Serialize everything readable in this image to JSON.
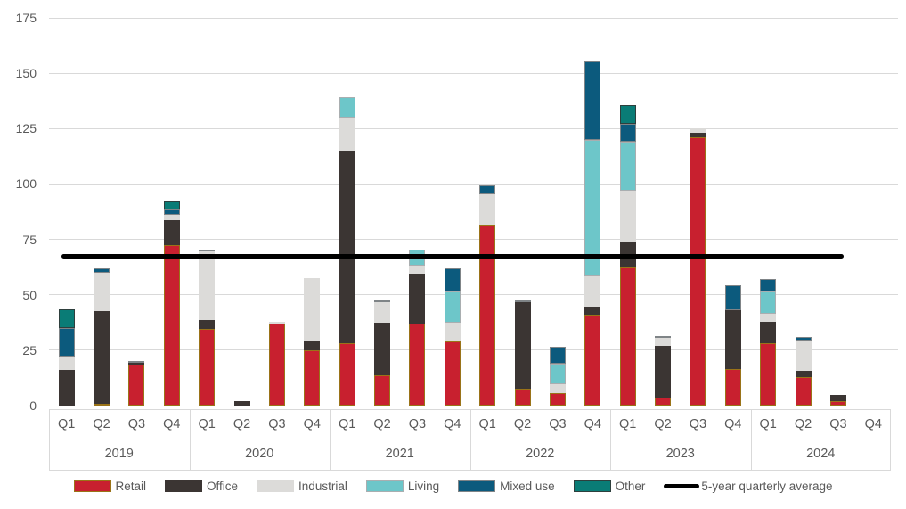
{
  "chart": {
    "background": "#ffffff",
    "text_color": "#595959",
    "grid_color": "#d9d9d9",
    "title": ""
  },
  "chart_data": {
    "type": "bar",
    "stacked": true,
    "grid": true,
    "legend_position": "bottom",
    "ylim": [
      0,
      175
    ],
    "yticks": [
      0,
      25,
      50,
      75,
      100,
      125,
      150,
      175
    ],
    "xlabel": "",
    "ylabel": "",
    "years": [
      "2019",
      "2020",
      "2021",
      "2022",
      "2023",
      "2024"
    ],
    "quarters": [
      "Q1",
      "Q2",
      "Q3",
      "Q4"
    ],
    "series": [
      {
        "name": "Retail",
        "color": "#c8202f",
        "border": "#9a7318",
        "values": [
          0,
          1,
          18.5,
          72.5,
          34.5,
          0,
          37,
          25,
          28,
          13.5,
          37,
          29,
          81.5,
          7.5,
          5.5,
          41,
          62.5,
          3.5,
          121,
          16.5,
          28,
          13,
          2,
          0
        ]
      },
      {
        "name": "Office",
        "color": "#3b3533",
        "border": "",
        "values": [
          16,
          41.5,
          1,
          11,
          4,
          2,
          0,
          4.5,
          87,
          24,
          22.5,
          0,
          0,
          39,
          0,
          3.5,
          11,
          23.5,
          2,
          26.5,
          10,
          2.5,
          3,
          0
        ]
      },
      {
        "name": "Industrial",
        "color": "#dcdbd9",
        "border": "",
        "values": [
          6,
          17.5,
          0,
          2.5,
          31,
          0,
          1,
          28,
          15,
          9,
          3.5,
          8.5,
          14,
          0,
          4,
          14,
          23.5,
          3.5,
          2,
          0,
          3.5,
          14,
          0,
          0
        ]
      },
      {
        "name": "Living",
        "color": "#6dc6c9",
        "border": "#a9aeb0",
        "values": [
          0,
          0,
          0,
          0,
          0,
          0,
          0,
          0,
          9,
          0,
          7.5,
          14,
          0,
          0,
          9.5,
          61.5,
          22,
          0,
          0,
          0,
          10,
          0,
          0,
          0
        ]
      },
      {
        "name": "Mixed use",
        "color": "#0c5a7d",
        "border": "#7f8487",
        "values": [
          13,
          2,
          0.5,
          2.5,
          1,
          0,
          0,
          0,
          0,
          1,
          0,
          10.5,
          4,
          1,
          7.5,
          35.5,
          8,
          1,
          0,
          11.5,
          5.5,
          1.5,
          0,
          0
        ]
      },
      {
        "name": "Other",
        "color": "#0a7c76",
        "border": "#2e3f3d",
        "values": [
          8.5,
          0,
          0,
          3.5,
          0,
          0,
          0,
          0,
          0,
          0,
          0,
          0,
          0,
          0,
          0,
          0,
          8.5,
          0,
          0,
          0,
          0,
          0,
          0,
          0
        ]
      }
    ],
    "average_line": {
      "label": "5-year quarterly average",
      "value": 67.5,
      "color": "#000000",
      "spans_quarters": [
        0,
        22
      ]
    }
  }
}
